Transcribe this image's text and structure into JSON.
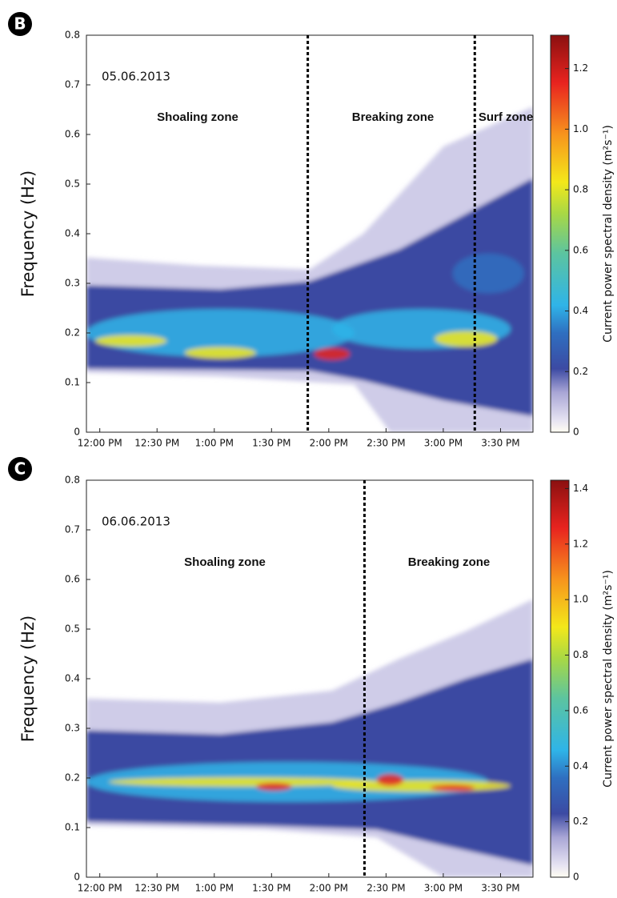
{
  "chart_data": [
    {
      "type": "heatmap",
      "panel": "B",
      "date": "05.06.2013",
      "ylabel": "Frequency (Hz)",
      "colorbar_label": "Current power spectral density (m²s⁻¹)",
      "zones": [
        "Shoaling zone",
        "Breaking zone",
        "Surf zone"
      ],
      "dividers": [
        109,
        196.5
      ],
      "xlim": [
        -7,
        227
      ],
      "xticks": [
        {
          "value": 0,
          "label": "12:00 PM"
        },
        {
          "value": 30,
          "label": "12:30 PM"
        },
        {
          "value": 60,
          "label": "1:00 PM"
        },
        {
          "value": 90,
          "label": "1:30 PM"
        },
        {
          "value": 120,
          "label": "2:00 PM"
        },
        {
          "value": 150,
          "label": "2:30 PM"
        },
        {
          "value": 180,
          "label": "3:00 PM"
        },
        {
          "value": 210,
          "label": "3:30 PM"
        }
      ],
      "ylim": [
        0,
        0.8
      ],
      "yticks": [
        0,
        0.1,
        0.2,
        0.3,
        0.4,
        0.5,
        0.6,
        0.7,
        0.8
      ],
      "clim": [
        0,
        1.31
      ],
      "cticks": [
        0,
        0.2,
        0.4,
        0.6,
        0.8,
        {
          "value": 1,
          "label": "1.0"
        },
        1.2
      ]
    },
    {
      "type": "heatmap",
      "panel": "C",
      "date": "06.06.2013",
      "ylabel": "Frequency (Hz)",
      "colorbar_label": "Current power spectral density (m²s⁻¹)",
      "zones": [
        "Shoaling zone",
        "Breaking zone"
      ],
      "dividers": [
        138.7
      ],
      "xlim": [
        -7,
        227
      ],
      "xticks": [
        {
          "value": 0,
          "label": "12:00 PM"
        },
        {
          "value": 30,
          "label": "12:30 PM"
        },
        {
          "value": 60,
          "label": "1:00 PM"
        },
        {
          "value": 90,
          "label": "1:30 PM"
        },
        {
          "value": 120,
          "label": "2:00 PM"
        },
        {
          "value": 150,
          "label": "2:30 PM"
        },
        {
          "value": 180,
          "label": "3:00 PM"
        },
        {
          "value": 210,
          "label": "3:30 PM"
        }
      ],
      "ylim": [
        0,
        0.8
      ],
      "yticks": [
        0,
        0.1,
        0.2,
        0.3,
        0.4,
        0.5,
        0.6,
        0.7,
        0.8
      ],
      "clim": [
        0,
        1.43
      ],
      "cticks": [
        0,
        0.2,
        0.4,
        0.6,
        0.8,
        {
          "value": 1,
          "label": "1.0"
        },
        1.2,
        1.4
      ]
    }
  ]
}
